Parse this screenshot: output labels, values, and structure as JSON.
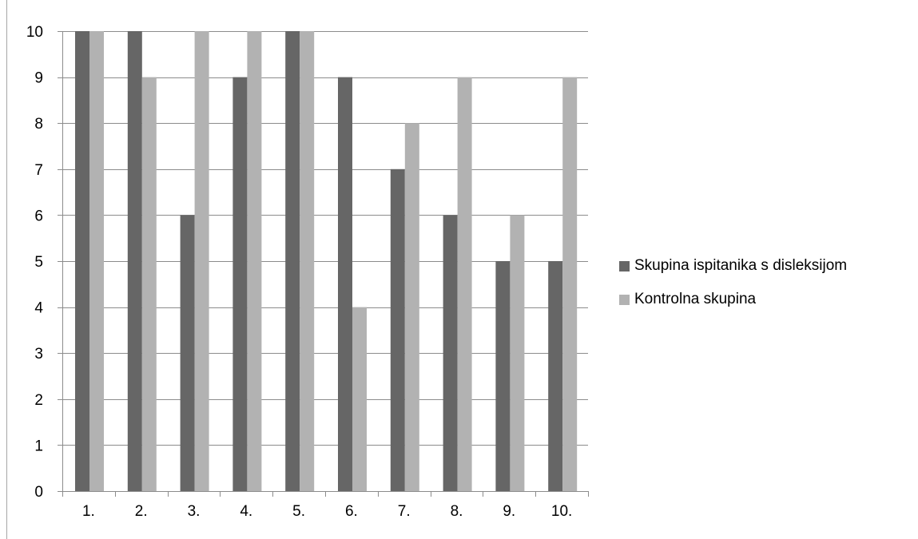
{
  "chart_data": {
    "type": "bar",
    "categories": [
      "1.",
      "2.",
      "3.",
      "4.",
      "5.",
      "6.",
      "7.",
      "8.",
      "9.",
      "10."
    ],
    "series": [
      {
        "name": "Skupina ispitanika s disleksijom",
        "values": [
          10,
          10,
          6,
          9,
          10,
          9,
          7,
          6,
          5,
          5
        ],
        "color": "#666666"
      },
      {
        "name": "Kontrolna skupina",
        "values": [
          10,
          9,
          10,
          10,
          10,
          4,
          8,
          9,
          6,
          9
        ],
        "color": "#b2b2b2"
      }
    ],
    "ylim": [
      0,
      10
    ],
    "yticks": [
      0,
      1,
      2,
      3,
      4,
      5,
      6,
      7,
      8,
      9,
      10
    ],
    "grid": true,
    "legend_position": "right",
    "title": "",
    "xlabel": "",
    "ylabel": ""
  }
}
